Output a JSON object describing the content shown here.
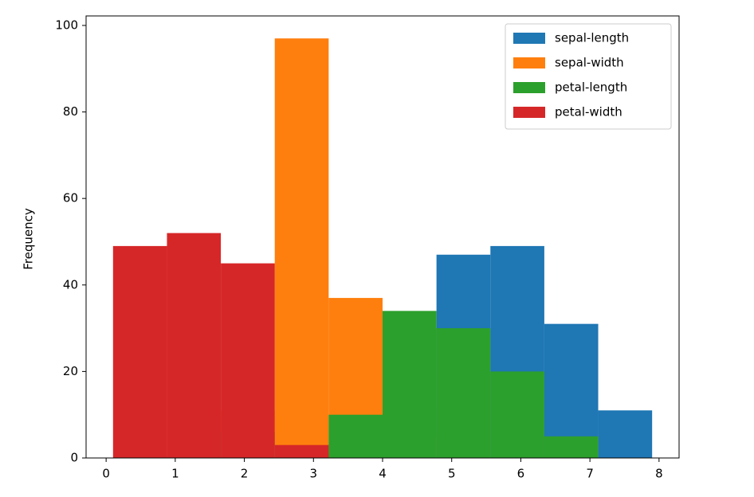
{
  "chart_data": {
    "type": "histogram",
    "ylabel": "Frequency",
    "bins": [
      0.1,
      0.88,
      1.66,
      2.44,
      3.22,
      4.0,
      4.78,
      5.56,
      6.34,
      7.12,
      7.9
    ],
    "series": [
      {
        "name": "sepal-length",
        "color": "#1f77b4",
        "values": [
          0,
          0,
          0,
          0,
          0,
          12,
          47,
          49,
          31,
          11
        ]
      },
      {
        "name": "sepal-width",
        "color": "#ff7f0e",
        "values": [
          0,
          0,
          11,
          97,
          37,
          5,
          0,
          0,
          0,
          0
        ]
      },
      {
        "name": "petal-length",
        "color": "#2ca02c",
        "values": [
          0,
          44,
          6,
          1,
          10,
          34,
          30,
          20,
          5,
          0
        ]
      },
      {
        "name": "petal-width",
        "color": "#d62728",
        "values": [
          49,
          52,
          45,
          3,
          0,
          0,
          0,
          0,
          0,
          0
        ]
      }
    ],
    "xlim": [
      -0.29,
      8.29
    ],
    "ylim": [
      0,
      102.2
    ],
    "xticks": [
      0,
      1,
      2,
      3,
      4,
      5,
      6,
      7,
      8
    ],
    "yticks": [
      0,
      20,
      40,
      60,
      80,
      100
    ],
    "legend": "upper right"
  }
}
